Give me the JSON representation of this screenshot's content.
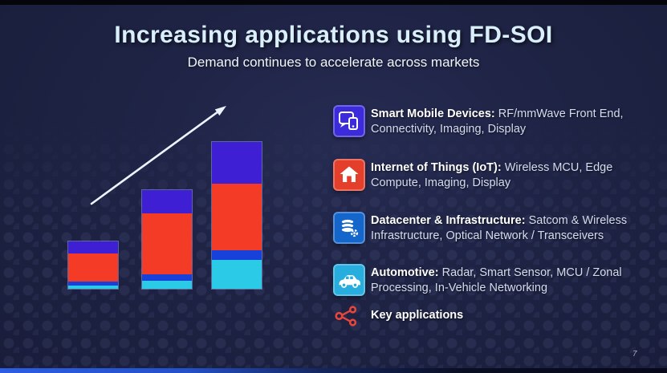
{
  "slide": {
    "title": "Increasing applications using FD-SOI",
    "subtitle": "Demand continues to accelerate across markets",
    "page_number": "7"
  },
  "legend": {
    "items": [
      {
        "label": "Smart Mobile Devices:",
        "description": " RF/mmWave Front End, Connectivity, Imaging, Display",
        "icon": "mobile-devices-icon",
        "tile_color": "#3b2bdb"
      },
      {
        "label": "Internet of Things (IoT):",
        "description": " Wireless MCU, Edge Compute, Imaging, Display",
        "icon": "home-icon",
        "tile_color": "#e33f2b"
      },
      {
        "label": "Datacenter & Infrastructure:",
        "description": " Satcom & Wireless Infrastructure, Optical Network / Transceivers",
        "icon": "database-gear-icon",
        "tile_color": "#1566cb"
      },
      {
        "label": "Automotive:",
        "description": " Radar, Smart Sensor, MCU / Zonal Processing, In-Vehicle Networking",
        "icon": "car-icon",
        "tile_color": "#27aede"
      }
    ],
    "key": {
      "label": "Key applications",
      "icon": "share-nodes-icon",
      "icon_color": "#e8463c"
    }
  },
  "chart_data": {
    "type": "bar",
    "variant": "stacked",
    "title": "",
    "xlabel": "",
    "ylabel": "",
    "axes_visible": false,
    "categories": [
      "",
      "",
      ""
    ],
    "note": "no numeric axis shown; values are relative heights measured from the slide (1 unit = 1 px)",
    "series": [
      {
        "name": "Automotive",
        "color": "#2bcbe8",
        "values": [
          4,
          10,
          36
        ]
      },
      {
        "name": "Datacenter & Infrastructure",
        "color": "#1741d8",
        "values": [
          5,
          8,
          12
        ]
      },
      {
        "name": "Internet of Things (IoT)",
        "color": "#f43b26",
        "values": [
          35,
          76,
          83
        ]
      },
      {
        "name": "Smart Mobile Devices",
        "color": "#3e1fd4",
        "values": [
          15,
          29,
          52
        ]
      }
    ],
    "annotations": [
      "white growth arrow pointing up-right above the bars"
    ]
  }
}
